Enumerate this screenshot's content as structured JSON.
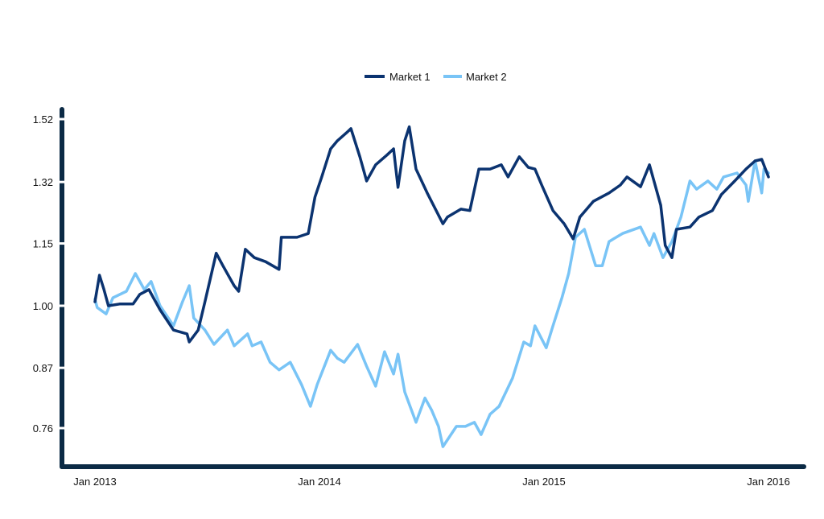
{
  "chart_data": {
    "type": "line",
    "title": "",
    "xlabel": "",
    "ylabel": "",
    "y_scale": "log2",
    "ylim": [
      0.7,
      1.55
    ],
    "xlim": [
      2012.85,
      2016.15
    ],
    "grid": false,
    "legend_placement": "top-center",
    "y_ticks": [
      {
        "value": 1.52,
        "label": "1.52"
      },
      {
        "value": 1.32,
        "label": "1.32"
      },
      {
        "value": 1.15,
        "label": "1.15"
      },
      {
        "value": 1.0,
        "label": "1.00"
      },
      {
        "value": 0.87,
        "label": "0.87"
      },
      {
        "value": 0.76,
        "label": "0.76"
      }
    ],
    "x_ticks": [
      {
        "value": 2013.0,
        "label": "Jan 2013"
      },
      {
        "value": 2014.0,
        "label": "Jan 2014"
      },
      {
        "value": 2015.0,
        "label": "Jan 2015"
      },
      {
        "value": 2016.0,
        "label": "Jan 2016"
      }
    ],
    "series": [
      {
        "name": "Market 1",
        "color": "#0b3370",
        "x": [
          2013.0,
          2013.02,
          2013.04,
          2013.06,
          2013.11,
          2013.17,
          2013.2,
          2013.24,
          2013.29,
          2013.35,
          2013.41,
          2013.42,
          2013.46,
          2013.49,
          2013.54,
          2013.57,
          2013.62,
          2013.64,
          2013.67,
          2013.71,
          2013.76,
          2013.82,
          2013.83,
          2013.9,
          2013.95,
          2013.98,
          2014.01,
          2014.05,
          2014.08,
          2014.12,
          2014.14,
          2014.18,
          2014.21,
          2014.25,
          2014.3,
          2014.33,
          2014.35,
          2014.38,
          2014.4,
          2014.43,
          2014.48,
          2014.55,
          2014.57,
          2014.63,
          2014.67,
          2014.71,
          2014.76,
          2014.81,
          2014.84,
          2014.89,
          2014.93,
          2014.96,
          2014.99,
          2015.04,
          2015.09,
          2015.13,
          2015.16,
          2015.22,
          2015.29,
          2015.34,
          2015.37,
          2015.43,
          2015.47,
          2015.52,
          2015.54,
          2015.57,
          2015.59,
          2015.65,
          2015.69,
          2015.75,
          2015.79,
          2015.85,
          2015.9,
          2015.94,
          2015.97,
          2016.0
        ],
        "values": [
          1.009,
          1.071,
          1.037,
          1.0,
          1.004,
          1.004,
          1.026,
          1.037,
          0.991,
          0.947,
          0.939,
          0.922,
          0.947,
          1.009,
          1.125,
          1.094,
          1.046,
          1.033,
          1.135,
          1.114,
          1.104,
          1.085,
          1.166,
          1.166,
          1.176,
          1.276,
          1.335,
          1.422,
          1.448,
          1.474,
          1.488,
          1.397,
          1.323,
          1.372,
          1.402,
          1.422,
          1.304,
          1.448,
          1.494,
          1.359,
          1.288,
          1.202,
          1.22,
          1.242,
          1.238,
          1.359,
          1.359,
          1.372,
          1.335,
          1.397,
          1.364,
          1.359,
          1.311,
          1.238,
          1.202,
          1.162,
          1.22,
          1.264,
          1.288,
          1.311,
          1.335,
          1.306,
          1.372,
          1.253,
          1.145,
          1.114,
          1.187,
          1.193,
          1.22,
          1.238,
          1.283,
          1.323,
          1.359,
          1.384,
          1.389,
          1.335
        ]
      },
      {
        "name": "Market 2",
        "color": "#79c4f6",
        "x": [
          2013.0,
          2013.01,
          2013.05,
          2013.08,
          2013.14,
          2013.18,
          2013.22,
          2013.25,
          2013.29,
          2013.35,
          2013.39,
          2013.42,
          2013.44,
          2013.49,
          2013.53,
          2013.59,
          2013.62,
          2013.68,
          2013.7,
          2013.74,
          2013.78,
          2013.82,
          2013.87,
          2013.92,
          2013.96,
          2013.99,
          2014.05,
          2014.08,
          2014.11,
          2014.17,
          2014.21,
          2014.25,
          2014.29,
          2014.33,
          2014.35,
          2014.38,
          2014.43,
          2014.47,
          2014.5,
          2014.53,
          2014.55,
          2014.61,
          2014.65,
          2014.69,
          2014.72,
          2014.76,
          2014.8,
          2014.86,
          2014.91,
          2014.94,
          2014.96,
          2015.01,
          2015.04,
          2015.08,
          2015.11,
          2015.14,
          2015.18,
          2015.23,
          2015.26,
          2015.29,
          2015.35,
          2015.43,
          2015.47,
          2015.49,
          2015.53,
          2015.57,
          2015.61,
          2015.65,
          2015.68,
          2015.73,
          2015.77,
          2015.8,
          2015.86,
          2015.9,
          2015.91,
          2015.94,
          2015.97,
          2015.98,
          2016.0
        ],
        "values": [
          1.015,
          0.996,
          0.982,
          1.018,
          1.033,
          1.075,
          1.037,
          1.056,
          1.0,
          0.956,
          1.009,
          1.046,
          0.973,
          0.947,
          0.917,
          0.947,
          0.914,
          0.939,
          0.914,
          0.922,
          0.881,
          0.866,
          0.881,
          0.838,
          0.798,
          0.838,
          0.905,
          0.889,
          0.881,
          0.917,
          0.873,
          0.835,
          0.902,
          0.858,
          0.897,
          0.824,
          0.77,
          0.813,
          0.791,
          0.763,
          0.729,
          0.763,
          0.763,
          0.77,
          0.749,
          0.784,
          0.798,
          0.85,
          0.922,
          0.914,
          0.956,
          0.91,
          0.956,
          1.018,
          1.075,
          1.166,
          1.187,
          1.094,
          1.094,
          1.155,
          1.176,
          1.193,
          1.145,
          1.176,
          1.114,
          1.155,
          1.22,
          1.323,
          1.299,
          1.323,
          1.299,
          1.335,
          1.347,
          1.311,
          1.264,
          1.384,
          1.288,
          1.359,
          1.347
        ]
      }
    ]
  },
  "axis_color": "#0b2a45"
}
